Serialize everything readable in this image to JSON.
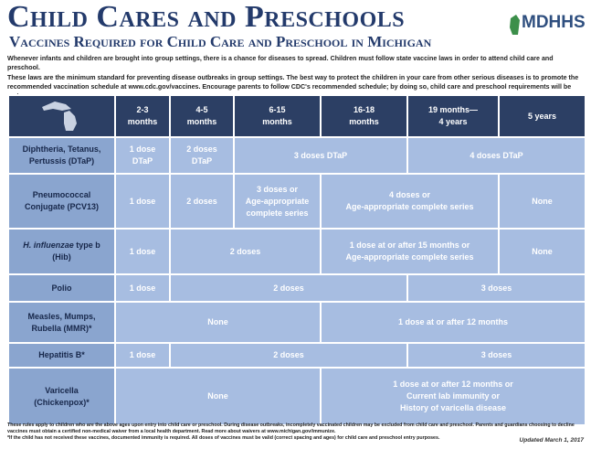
{
  "header": {
    "title": "Child Cares and Preschools",
    "subtitle": "Vaccines Required for Child Care and Preschool in Michigan",
    "logo": "MDHHS"
  },
  "intro": [
    "Whenever infants and children are brought into group settings, there is a chance for diseases to spread. Children must follow state vaccine laws in order to attend child care and preschool.",
    "These laws are the minimum standard for preventing disease outbreaks in group settings. The best way to protect the children in your care from other serious diseases is to promote the recommended vaccination schedule at www.cdc.gov/vaccines. Encourage parents to follow CDC's recommended schedule; by doing so, child care and preschool requirements will be met."
  ],
  "table": {
    "columns": [
      [
        "2-3",
        "months"
      ],
      [
        "4-5",
        "months"
      ],
      [
        "6-15",
        "months"
      ],
      [
        "16-18",
        "months"
      ],
      [
        "19 months—",
        "4 years"
      ],
      [
        "5 years"
      ]
    ],
    "rows": [
      {
        "label": [
          "Diphtheria, Tetanus,",
          "Pertussis (DTaP)"
        ],
        "cells": [
          [
            "1 dose",
            "DTaP"
          ],
          [
            "2 doses",
            "DTaP"
          ],
          [
            "3 doses DTaP"
          ],
          [
            "4 doses DTaP"
          ]
        ]
      },
      {
        "label": [
          "Pneumococcal",
          "Conjugate (PCV13)"
        ],
        "cells": [
          [
            "1 dose"
          ],
          [
            "2 doses"
          ],
          [
            "3 doses or",
            "Age-appropriate",
            "complete series"
          ],
          [
            "4 doses or",
            "Age-appropriate complete series"
          ],
          [
            "None"
          ]
        ]
      },
      {
        "label": [
          "H. influenzae",
          "type b",
          "(Hib)"
        ],
        "cells": [
          [
            "1 dose"
          ],
          [
            "2 doses"
          ],
          [
            "1 dose at or after 15 months or",
            "Age-appropriate complete series"
          ],
          [
            "None"
          ]
        ]
      },
      {
        "label": [
          "Polio"
        ],
        "cells": [
          [
            "1 dose"
          ],
          [
            "2 doses"
          ],
          [
            "3 doses"
          ]
        ]
      },
      {
        "label": [
          "Measles, Mumps,",
          "Rubella (MMR)*"
        ],
        "cells": [
          [
            "None"
          ],
          [
            "1 dose at or after 12 months"
          ]
        ]
      },
      {
        "label": [
          "Hepatitis B*"
        ],
        "cells": [
          [
            "1 dose"
          ],
          [
            "2 doses"
          ],
          [
            "3 doses"
          ]
        ]
      },
      {
        "label": [
          "Varicella",
          "(Chickenpox)*"
        ],
        "cells": [
          [
            "None"
          ],
          [
            "1 dose at or after 12 months or",
            "Current lab immunity or",
            "History of varicella disease"
          ]
        ]
      }
    ]
  },
  "footer": {
    "notes": [
      "These rules apply to children who are the above ages upon entry into child care or preschool. During disease outbreaks, incompletely vaccinated children may be excluded from child care and preschool. Parents and guardians choosing to decline vaccines must obtain a certified non-medical waiver from a local health department. Read more about waivers at www.michigan.gov/immunize.",
      "*If the child has not received these vaccines, documented immunity is required. All doses of vaccines must be valid (correct spacing and ages) for child care and preschool entry purposes."
    ],
    "updated": "Updated March 1, 2017"
  }
}
